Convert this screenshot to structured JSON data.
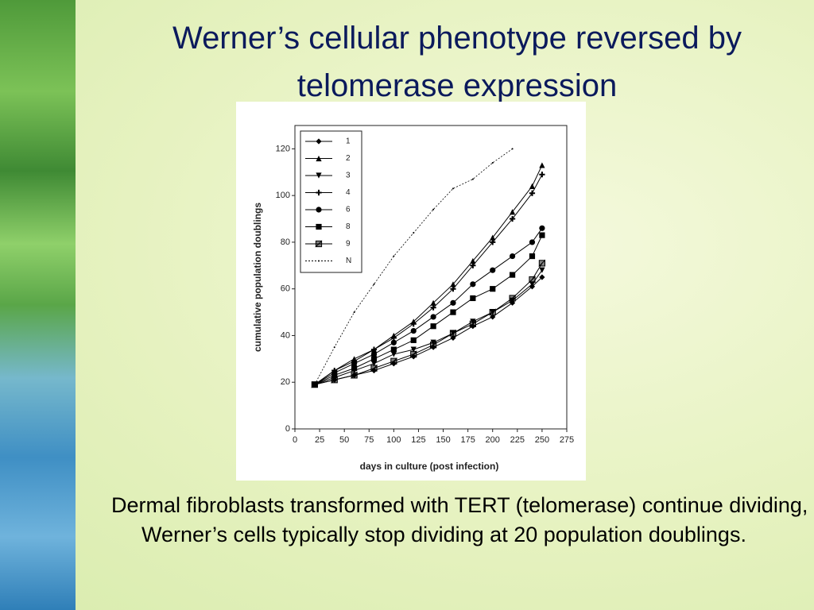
{
  "title": "Werner’s cellular phenotype reversed by telomerase expression",
  "body": "Dermal fibroblasts transformed with TERT (telomerase) continue dividing, Werner’s cells typically stop dividing at 20 population doublings.",
  "chart_data": {
    "type": "line",
    "xlabel": "days in culture (post infection)",
    "ylabel": "cumulative population doublings",
    "x": [
      20,
      40,
      60,
      80,
      100,
      120,
      140,
      160,
      180,
      200,
      220,
      240,
      250
    ],
    "xlim": [
      0,
      275
    ],
    "xticks": [
      0,
      25,
      50,
      75,
      100,
      125,
      150,
      175,
      200,
      225,
      250,
      275
    ],
    "ylim": [
      0,
      130
    ],
    "yticks": [
      0,
      20,
      40,
      60,
      80,
      100,
      120
    ],
    "legend": "upper left",
    "series": [
      {
        "name": "1",
        "color": "#000000",
        "marker": "diamond",
        "values": [
          19,
          21,
          23,
          25,
          28,
          31,
          35,
          39,
          44,
          48,
          54,
          61,
          65
        ]
      },
      {
        "name": "2",
        "color": "#000000",
        "marker": "triangle-up",
        "values": [
          19,
          25,
          30,
          34,
          40,
          46,
          54,
          62,
          72,
          82,
          93,
          104,
          113
        ]
      },
      {
        "name": "3",
        "color": "#000000",
        "marker": "triangle-down",
        "values": [
          19,
          22,
          25,
          28,
          32,
          34,
          37,
          41,
          46,
          50,
          55,
          62,
          68
        ]
      },
      {
        "name": "4",
        "color": "#000000",
        "marker": "plus",
        "values": [
          19,
          25,
          29,
          34,
          39,
          45,
          52,
          60,
          70,
          80,
          90,
          101,
          109
        ]
      },
      {
        "name": "6",
        "color": "#000000",
        "marker": "circle",
        "values": [
          19,
          24,
          28,
          32,
          37,
          42,
          48,
          54,
          62,
          68,
          74,
          80,
          86
        ]
      },
      {
        "name": "8",
        "color": "#000000",
        "marker": "square",
        "values": [
          19,
          23,
          26,
          30,
          34,
          38,
          44,
          50,
          56,
          60,
          66,
          74,
          83
        ]
      },
      {
        "name": "9",
        "color": "#000000",
        "marker": "half-square",
        "values": [
          19,
          21,
          23,
          26,
          29,
          32,
          36,
          41,
          45,
          50,
          56,
          64,
          71
        ]
      },
      {
        "name": "N",
        "color": "#000000",
        "marker": "dot",
        "values": [
          19,
          35,
          50,
          62,
          74,
          84,
          94,
          103,
          107,
          114,
          120,
          null,
          null
        ]
      }
    ]
  }
}
